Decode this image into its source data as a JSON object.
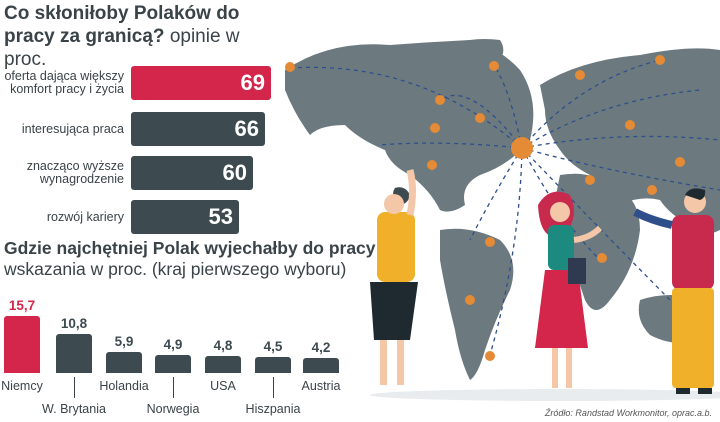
{
  "chart_data": [
    {
      "type": "bar",
      "orientation": "horizontal",
      "title": "Co skłoniłoby Polaków do pracy za granicą?",
      "subtitle": "opinie w proc.",
      "categories": [
        "oferta dająca większy komfort pracy i życia",
        "interesująca praca",
        "znacząco wyższe wynagrodzenie",
        "rozwój kariery"
      ],
      "values": [
        69,
        66,
        60,
        53
      ],
      "highlight_index": 0
    },
    {
      "type": "bar",
      "orientation": "vertical",
      "title": "Gdzie najchętniej Polak wyjechałby do pracy",
      "subtitle": "wskazania w proc. (kraj pierwszego wyboru)",
      "categories": [
        "Niemcy",
        "W. Brytania",
        "Holandia",
        "Norwegia",
        "USA",
        "Hiszpania",
        "Austria"
      ],
      "values": [
        15.7,
        10.8,
        5.9,
        4.9,
        4.8,
        4.5,
        4.2
      ],
      "value_labels": [
        "15,7",
        "10,8",
        "5,9",
        "4,9",
        "4,8",
        "4,5",
        "4,2"
      ],
      "highlight_index": 0
    }
  ],
  "colors": {
    "highlight": "#d4254a",
    "bar": "#3d4b50",
    "map": "#6c7a80",
    "text": "#3a4347"
  },
  "source": "Źródło: Randstad Workmonitor, oprac.a.b."
}
